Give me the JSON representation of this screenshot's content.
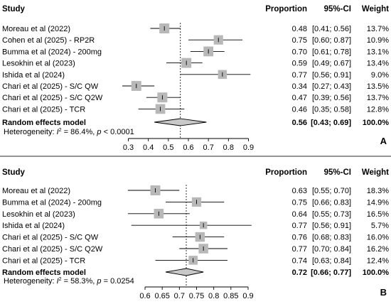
{
  "chart_data": [
    {
      "type": "forest",
      "panel_label": "A",
      "headers": {
        "study": "Study",
        "proportion": "Proportion",
        "ci": "95%-CI",
        "weight": "Weight"
      },
      "xlim": [
        0.3,
        0.9
      ],
      "xticks": [
        "0.3",
        "0.4",
        "0.5",
        "0.6",
        "0.7",
        "0.8",
        "0.9"
      ],
      "xtick_values": [
        0.3,
        0.4,
        0.5,
        0.6,
        0.7,
        0.8,
        0.9
      ],
      "studies": [
        {
          "name": "Moreau et al (2022)",
          "est": 0.48,
          "lo": 0.41,
          "hi": 0.56,
          "prop": "0.48",
          "ci": "[0.41; 0.56]",
          "weight": "13.7%",
          "w": 13.7
        },
        {
          "name": "Cohen et al (2025) - RP2R",
          "est": 0.75,
          "lo": 0.6,
          "hi": 0.87,
          "prop": "0.75",
          "ci": "[0.60; 0.87]",
          "weight": "10.9%",
          "w": 10.9
        },
        {
          "name": "Bumma et al (2024) - 200mg",
          "est": 0.7,
          "lo": 0.61,
          "hi": 0.78,
          "prop": "0.70",
          "ci": "[0.61; 0.78]",
          "weight": "13.1%",
          "w": 13.1
        },
        {
          "name": "Lesokhin et al (2023)",
          "est": 0.59,
          "lo": 0.49,
          "hi": 0.67,
          "prop": "0.59",
          "ci": "[0.49; 0.67]",
          "weight": "13.4%",
          "w": 13.4
        },
        {
          "name": "Ishida et al (2024)",
          "est": 0.77,
          "lo": 0.56,
          "hi": 0.91,
          "prop": "0.77",
          "ci": "[0.56; 0.91]",
          "weight": "9.0%",
          "w": 9.0
        },
        {
          "name": "Chari et al (2025) - S/C QW",
          "est": 0.34,
          "lo": 0.27,
          "hi": 0.43,
          "prop": "0.34",
          "ci": "[0.27; 0.43]",
          "weight": "13.5%",
          "w": 13.5
        },
        {
          "name": "Chari et al (2025) - S/C Q2W",
          "est": 0.47,
          "lo": 0.39,
          "hi": 0.56,
          "prop": "0.47",
          "ci": "[0.39; 0.56]",
          "weight": "13.7%",
          "w": 13.7
        },
        {
          "name": "Chari et al (2025) - TCR",
          "est": 0.46,
          "lo": 0.35,
          "hi": 0.58,
          "prop": "0.46",
          "ci": "[0.35; 0.58]",
          "weight": "12.8%",
          "w": 12.8
        }
      ],
      "pooled": {
        "name": "Random effects model",
        "est": 0.56,
        "lo": 0.43,
        "hi": 0.69,
        "prop": "0.56",
        "ci": "[0.43; 0.69]",
        "weight": "100.0%"
      },
      "heterogeneity": {
        "prefix": "Heterogeneity: ",
        "i2_symbol": "I",
        "i2_sup": "2",
        "i2_value": " = 86.4%, ",
        "p_symbol": "p",
        "p_value": " < 0.0001"
      }
    },
    {
      "type": "forest",
      "panel_label": "B",
      "headers": {
        "study": "Study",
        "proportion": "Proportion",
        "ci": "95%-CI",
        "weight": "Weight"
      },
      "xlim": [
        0.6,
        0.9
      ],
      "xticks": [
        "0.6",
        "0.65",
        "0.7",
        "0.75",
        "0.8",
        "0.85",
        "0.9"
      ],
      "xtick_values": [
        0.6,
        0.65,
        0.7,
        0.75,
        0.8,
        0.85,
        0.9
      ],
      "studies": [
        {
          "name": "Moreau et al (2022)",
          "est": 0.63,
          "lo": 0.55,
          "hi": 0.7,
          "prop": "0.63",
          "ci": "[0.55; 0.70]",
          "weight": "18.3%",
          "w": 18.3
        },
        {
          "name": "Bumma et al (2024) - 200mg",
          "est": 0.75,
          "lo": 0.66,
          "hi": 0.83,
          "prop": "0.75",
          "ci": "[0.66; 0.83]",
          "weight": "14.9%",
          "w": 14.9
        },
        {
          "name": "Lesokhin et al (2023)",
          "est": 0.64,
          "lo": 0.55,
          "hi": 0.73,
          "prop": "0.64",
          "ci": "[0.55; 0.73]",
          "weight": "16.5%",
          "w": 16.5
        },
        {
          "name": "Ishida et al (2024)",
          "est": 0.77,
          "lo": 0.56,
          "hi": 0.91,
          "prop": "0.77",
          "ci": "[0.56; 0.91]",
          "weight": "5.7%",
          "w": 5.7
        },
        {
          "name": "Chari et al (2025) - S/C QW",
          "est": 0.76,
          "lo": 0.68,
          "hi": 0.83,
          "prop": "0.76",
          "ci": "[0.68; 0.83]",
          "weight": "16.0%",
          "w": 16.0
        },
        {
          "name": "Chari et al (2025) - S/C Q2W",
          "est": 0.77,
          "lo": 0.7,
          "hi": 0.84,
          "prop": "0.77",
          "ci": "[0.70; 0.84]",
          "weight": "16.2%",
          "w": 16.2
        },
        {
          "name": "Chari et al (2025) - TCR",
          "est": 0.74,
          "lo": 0.63,
          "hi": 0.84,
          "prop": "0.74",
          "ci": "[0.63; 0.84]",
          "weight": "12.4%",
          "w": 12.4
        }
      ],
      "pooled": {
        "name": "Random effects model",
        "est": 0.72,
        "lo": 0.66,
        "hi": 0.77,
        "prop": "0.72",
        "ci": "[0.66; 0.77]",
        "weight": "100.0%"
      },
      "heterogeneity": {
        "prefix": "Heterogeneity: ",
        "i2_symbol": "I",
        "i2_sup": "2",
        "i2_value": " = 58.3%, ",
        "p_symbol": "p",
        "p_value": " = 0.0254"
      }
    }
  ],
  "colors": {
    "square": "#b8b8b8",
    "diamond": "#c8c8c8",
    "line": "#000000",
    "divider": "#555555"
  }
}
